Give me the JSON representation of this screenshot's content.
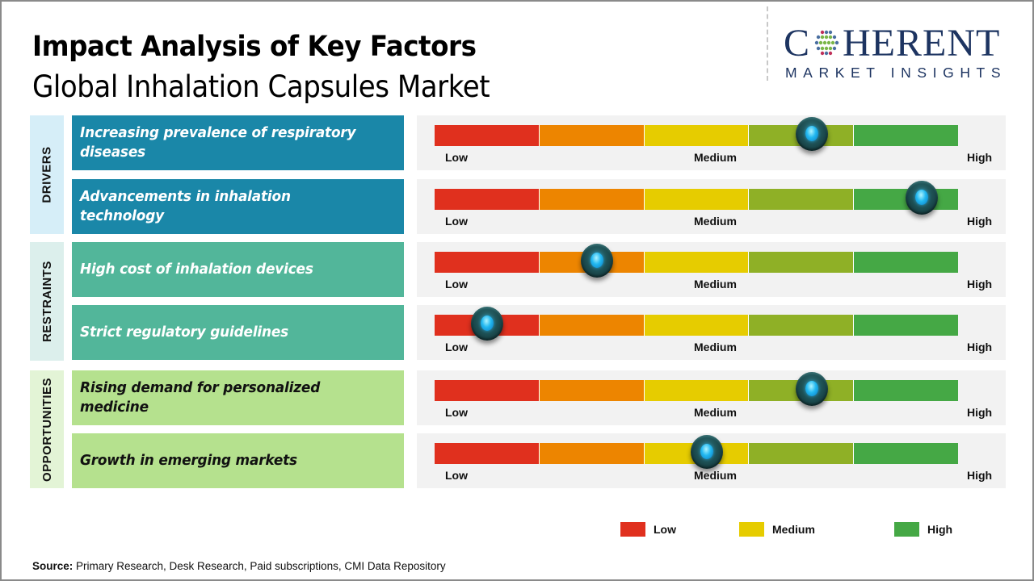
{
  "header": {
    "title": "Impact Analysis of Key Factors",
    "subtitle": "Global Inhalation Capsules Market"
  },
  "logo": {
    "word_start": "C",
    "word_end": "HERENT",
    "tagline": "MARKET INSIGHTS",
    "icon": "dotted-globe-icon"
  },
  "colors": {
    "scale": [
      "#e0301e",
      "#ed8500",
      "#e6cc00",
      "#8fb026",
      "#45a845"
    ],
    "drivers_fill": "#1a87a8",
    "drivers_text": "#ffffff",
    "drivers_label_bg": "#d6eef8",
    "restraints_fill": "#52b69a",
    "restraints_text": "#ffffff",
    "restraints_label_bg": "#dcefec",
    "opportunities_fill": "#b5e18e",
    "opportunities_text": "#111111",
    "opportunities_label_bg": "#e3f4d6",
    "brand": "#1d3461"
  },
  "chart_data": {
    "type": "table",
    "title": "Impact Analysis of Key Factors",
    "subtitle": "Global Inhalation Capsules Market",
    "scale_labels": [
      "Low",
      "Medium",
      "High"
    ],
    "scale_range": [
      0,
      1
    ],
    "categories": [
      {
        "name": "DRIVERS",
        "factors": [
          {
            "label": "Increasing prevalence of respiratory diseases",
            "impact": 0.72
          },
          {
            "label": "Advancements in inhalation technology",
            "impact": 0.93
          }
        ]
      },
      {
        "name": "RESTRAINTS",
        "factors": [
          {
            "label": "High cost of inhalation devices",
            "impact": 0.31
          },
          {
            "label": "Strict regulatory guidelines",
            "impact": 0.1
          }
        ]
      },
      {
        "name": "OPPORTUNITIES",
        "factors": [
          {
            "label": "Rising demand for personalized medicine",
            "impact": 0.72
          },
          {
            "label": "Growth in emerging markets",
            "impact": 0.52
          }
        ]
      }
    ],
    "legend": [
      {
        "label": "Low",
        "color": "#e0301e"
      },
      {
        "label": "Medium",
        "color": "#e6cc00"
      },
      {
        "label": "High",
        "color": "#45a845"
      }
    ],
    "legend_position": "bottom-right"
  },
  "footer": {
    "source_label": "Source:",
    "source_text": " Primary Research, Desk Research, Paid subscriptions, CMI Data Repository"
  }
}
